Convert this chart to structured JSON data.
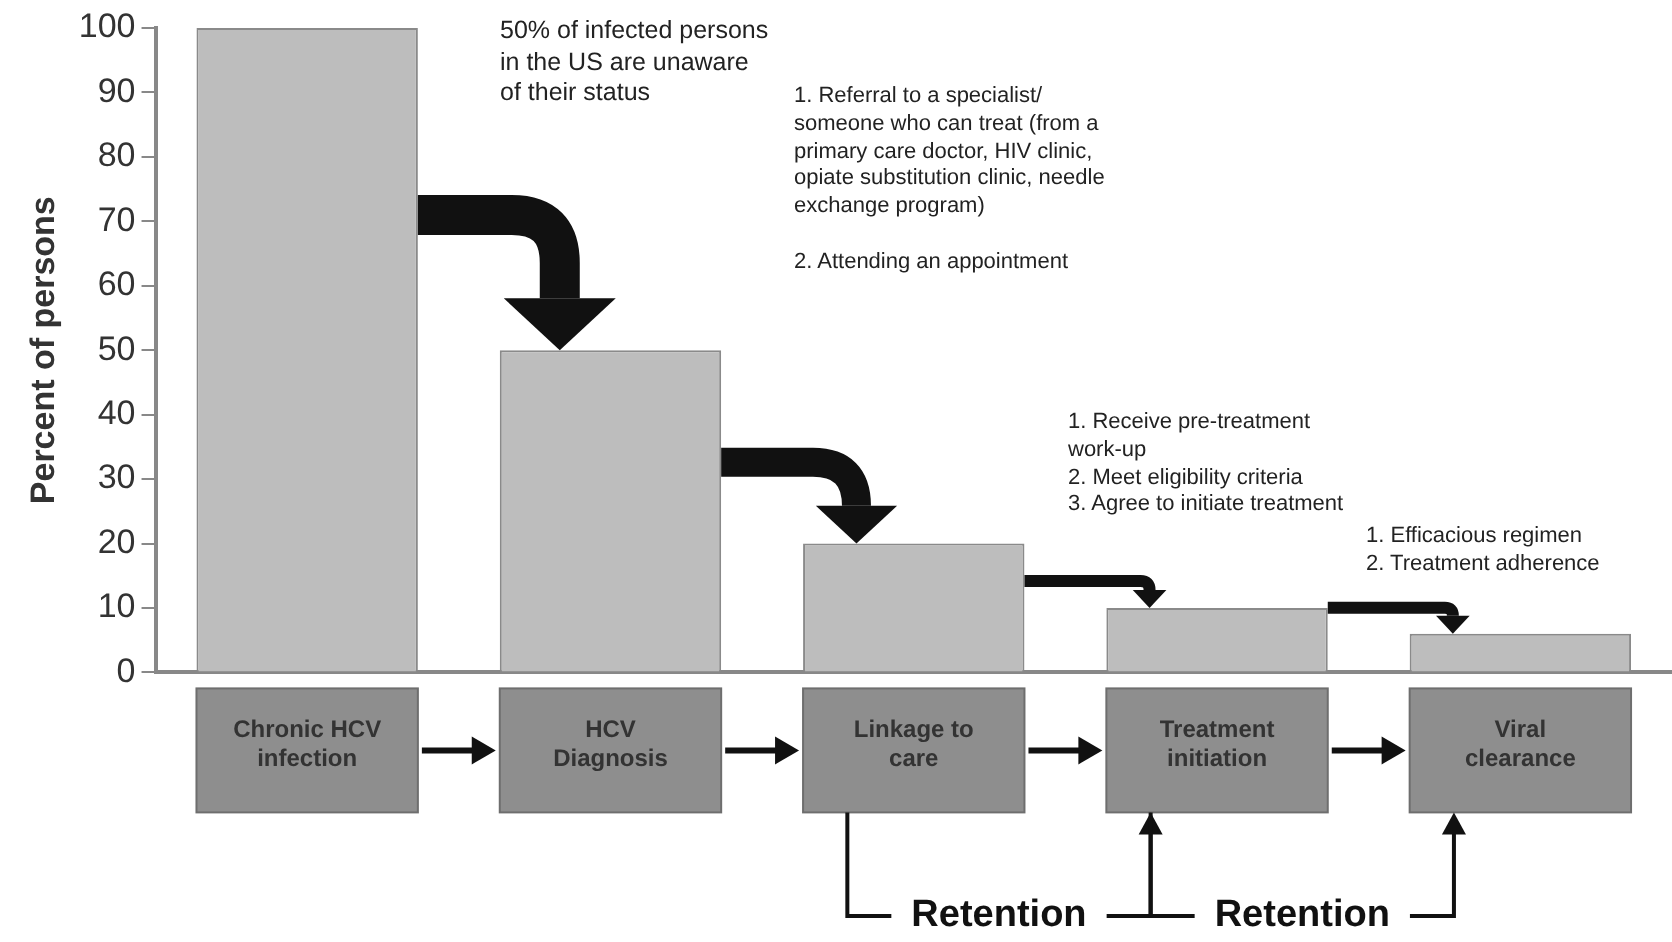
{
  "chart_data": {
    "type": "bar",
    "categories": [
      "Chronic HCV infection",
      "HCV Diagnosis",
      "Linkage to care",
      "Treatment initiation",
      "Viral clearance"
    ],
    "values": [
      100,
      50,
      20,
      10,
      6
    ],
    "color": "#bdbdbd",
    "ylabel": "Percent of persons",
    "ylim": [
      0,
      100
    ],
    "yticks": [
      0,
      10,
      20,
      30,
      40,
      50,
      60,
      70,
      80,
      90,
      100
    ],
    "annotations": [
      "50% of infected persons in the US are unaware of their status",
      "1. Referral to a specialist/ someone who can treat (from a primary care doctor, HIV clinic, opiate substitution clinic, needle exchange program)\n\n2. Attending an appointment",
      "1. Receive pre-treatment work-up\n2. Meet eligibility criteria\n3. Agree to initiate treatment",
      "1. Efficacious regimen\n2. Treatment adherence",
      "Retention",
      "Retention"
    ]
  }
}
